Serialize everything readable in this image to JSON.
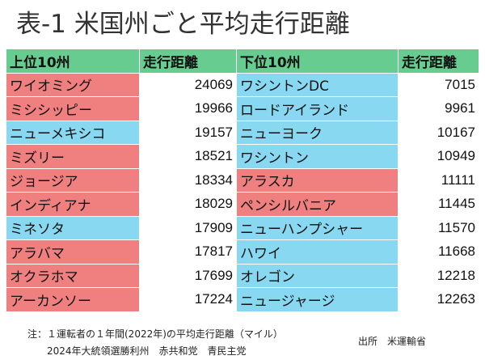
{
  "title": "表-1 米国州ごと平均走行距離",
  "table": {
    "headers": [
      "上位10州",
      "走行距離",
      "下位10州",
      "走行距離"
    ],
    "rows": [
      {
        "top_state": "ワイオミング",
        "top_value": "24069",
        "top_color": "#f08080",
        "bottom_state": "ワシントンDC",
        "bottom_value": "7015",
        "bottom_color": "#87d8f0"
      },
      {
        "top_state": "ミシシッピー",
        "top_value": "19966",
        "top_color": "#f08080",
        "bottom_state": "ロードアイランド",
        "bottom_value": "9961",
        "bottom_color": "#87d8f0"
      },
      {
        "top_state": "ニューメキシコ",
        "top_value": "19157",
        "top_color": "#87d8f0",
        "bottom_state": "ニューヨーク",
        "bottom_value": "10167",
        "bottom_color": "#87d8f0"
      },
      {
        "top_state": "ミズリー",
        "top_value": "18521",
        "top_color": "#f08080",
        "bottom_state": "ワシントン",
        "bottom_value": "10949",
        "bottom_color": "#87d8f0"
      },
      {
        "top_state": "ジョージア",
        "top_value": "18334",
        "top_color": "#f08080",
        "bottom_state": "アラスカ",
        "bottom_value": "11111",
        "bottom_color": "#f08080"
      },
      {
        "top_state": "インディアナ",
        "top_value": "18029",
        "top_color": "#f08080",
        "bottom_state": "ペンシルバニア",
        "bottom_value": "11445",
        "bottom_color": "#f08080"
      },
      {
        "top_state": "ミネソタ",
        "top_value": "17909",
        "top_color": "#87d8f0",
        "bottom_state": "ニューハンプシャー",
        "bottom_value": "11570",
        "bottom_color": "#87d8f0"
      },
      {
        "top_state": "アラバマ",
        "top_value": "17817",
        "top_color": "#f08080",
        "bottom_state": "ハワイ",
        "bottom_value": "11668",
        "bottom_color": "#87d8f0"
      },
      {
        "top_state": "オクラホマ",
        "top_value": "17699",
        "top_color": "#f08080",
        "bottom_state": "オレゴン",
        "bottom_value": "12218",
        "bottom_color": "#87d8f0"
      },
      {
        "top_state": "アーカンソー",
        "top_value": "17224",
        "top_color": "#f08080",
        "bottom_state": "ニュージャージ",
        "bottom_value": "12263",
        "bottom_color": "#87d8f0"
      }
    ]
  },
  "colors": {
    "header": "#66cc8f",
    "republican": "#f08080",
    "democrat": "#87d8f0"
  },
  "notes": {
    "line1": "注：１運転者の１年間(2022年)の平均走行距離（マイル）",
    "line2": "2024年大統領選勝利州　赤共和党　青民主党",
    "source": "出所　米運輸省"
  }
}
